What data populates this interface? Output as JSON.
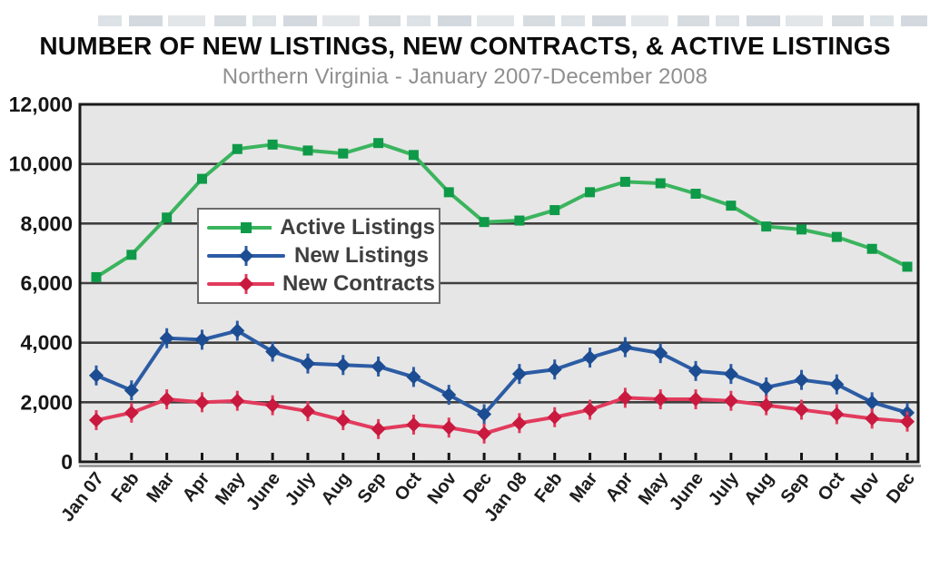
{
  "chart_data": {
    "type": "line",
    "title": "NUMBER OF NEW LISTINGS, NEW CONTRACTS, & ACTIVE LISTINGS",
    "subtitle": "Northern Virginia - January 2007-December 2008",
    "categories": [
      "Jan 07",
      "Feb",
      "Mar",
      "Apr",
      "May",
      "June",
      "July",
      "Aug",
      "Sep",
      "Oct",
      "Nov",
      "Dec",
      "Jan 08",
      "Feb",
      "Mar",
      "Apr",
      "May",
      "June",
      "July",
      "Aug",
      "Sep",
      "Oct",
      "Nov",
      "Dec"
    ],
    "series": [
      {
        "name": "Active Listings",
        "marker": "square",
        "line_color": "#3bb45e",
        "marker_color": "#0e9a48",
        "values": [
          6200,
          6950,
          8200,
          9500,
          10500,
          10650,
          10450,
          10350,
          10700,
          10300,
          9050,
          8050,
          8100,
          8450,
          9050,
          9400,
          9350,
          9000,
          8600,
          7900,
          7800,
          7550,
          7150,
          6550
        ]
      },
      {
        "name": "New Listings",
        "marker": "diamond",
        "line_color": "#2c5ca4",
        "marker_color": "#1c4c92",
        "values": [
          2900,
          2400,
          4150,
          4100,
          4400,
          3700,
          3300,
          3250,
          3200,
          2850,
          2250,
          1600,
          2950,
          3100,
          3500,
          3850,
          3650,
          3050,
          2950,
          2500,
          2750,
          2600,
          2000,
          1650
        ]
      },
      {
        "name": "New Contracts",
        "marker": "diamond",
        "line_color": "#e23b5d",
        "marker_color": "#c9193f",
        "values": [
          1400,
          1650,
          2100,
          2000,
          2050,
          1900,
          1700,
          1400,
          1100,
          1250,
          1150,
          950,
          1300,
          1500,
          1750,
          2150,
          2100,
          2100,
          2050,
          1900,
          1750,
          1600,
          1450,
          1350
        ]
      }
    ],
    "ylim": [
      0,
      12000
    ],
    "ytick_interval": 2000,
    "ytick_labels": [
      "0",
      "2,000",
      "4,000",
      "6,000",
      "8,000",
      "10,000",
      "12,000"
    ],
    "grid": "horizontal",
    "legend_position": "upper-left-inside",
    "plot_bg": "#e6e6e6",
    "grid_color": "#3f3f3f",
    "border_color": "#1a1a1a",
    "axis_shadow_color": "#9b9b9b"
  }
}
